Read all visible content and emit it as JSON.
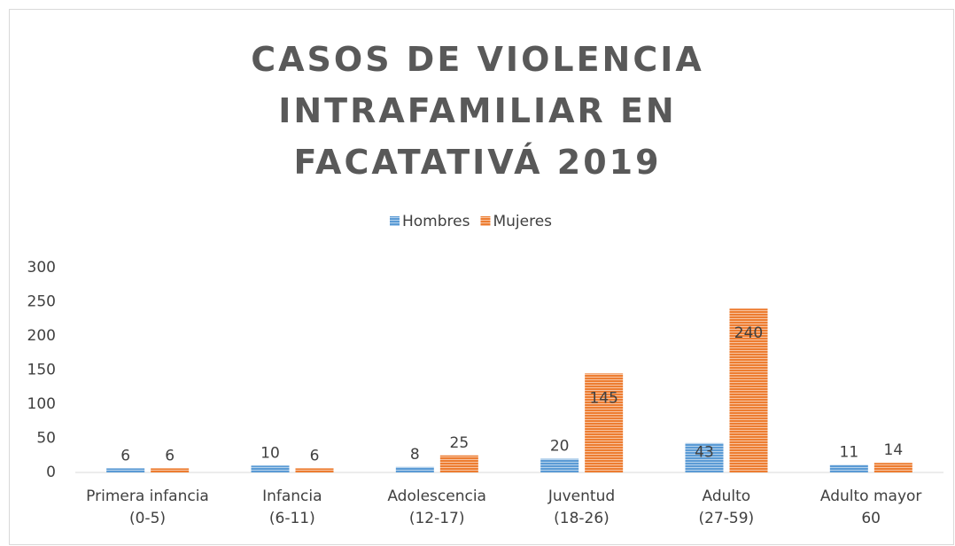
{
  "chart_data": {
    "type": "bar",
    "title": "CASOS DE VIOLENCIA INTRAFAMILIAR EN FACATATIVÁ 2019",
    "categories": [
      "Primera infancia\n(0-5)",
      "Infancia\n(6-11)",
      "Adolescencia\n(12-17)",
      "Juventud\n(18-26)",
      "Adulto\n(27-59)",
      "Adulto mayor\n60"
    ],
    "series": [
      {
        "name": "Hombres",
        "color": "#5b9bd5",
        "values": [
          6,
          10,
          8,
          20,
          43,
          11
        ]
      },
      {
        "name": "Mujeres",
        "color": "#ed7d31",
        "values": [
          6,
          6,
          25,
          145,
          240,
          14
        ]
      }
    ],
    "ylim": [
      0,
      300
    ],
    "yticks": [
      0,
      50,
      100,
      150,
      200,
      250,
      300
    ],
    "grid": false,
    "legend": "top"
  }
}
